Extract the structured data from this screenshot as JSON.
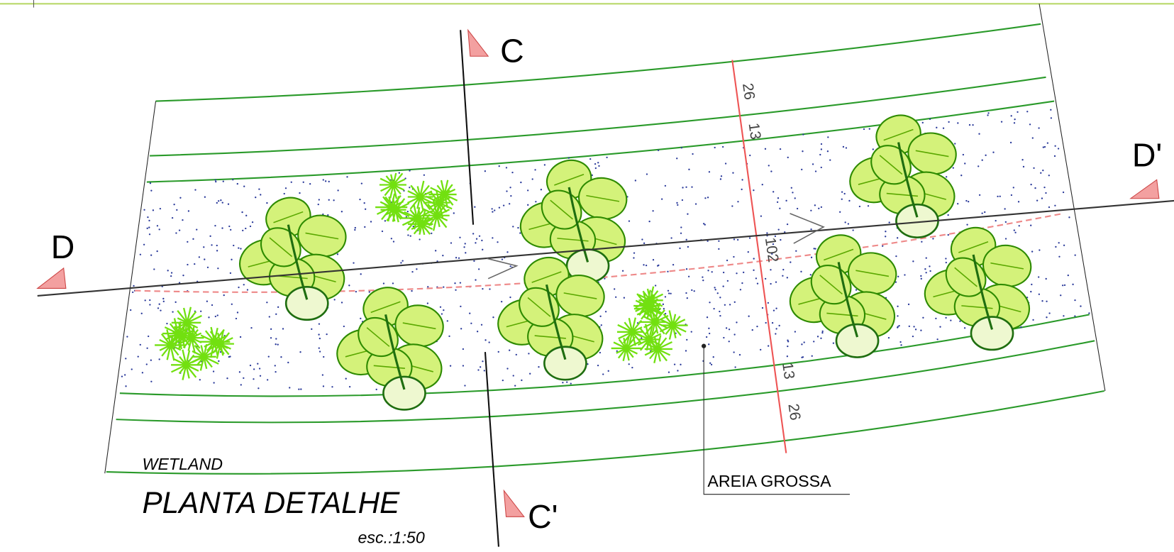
{
  "sections": {
    "c": "C",
    "c_prime": "C'",
    "d": "D",
    "d_prime": "D'"
  },
  "dimensions": [
    "26",
    "13",
    "102",
    "13",
    "26"
  ],
  "label": "WETLAND",
  "title": "PLANTA DETALHE",
  "scale": "esc.:1:50",
  "material": "AREIA GROSSA"
}
